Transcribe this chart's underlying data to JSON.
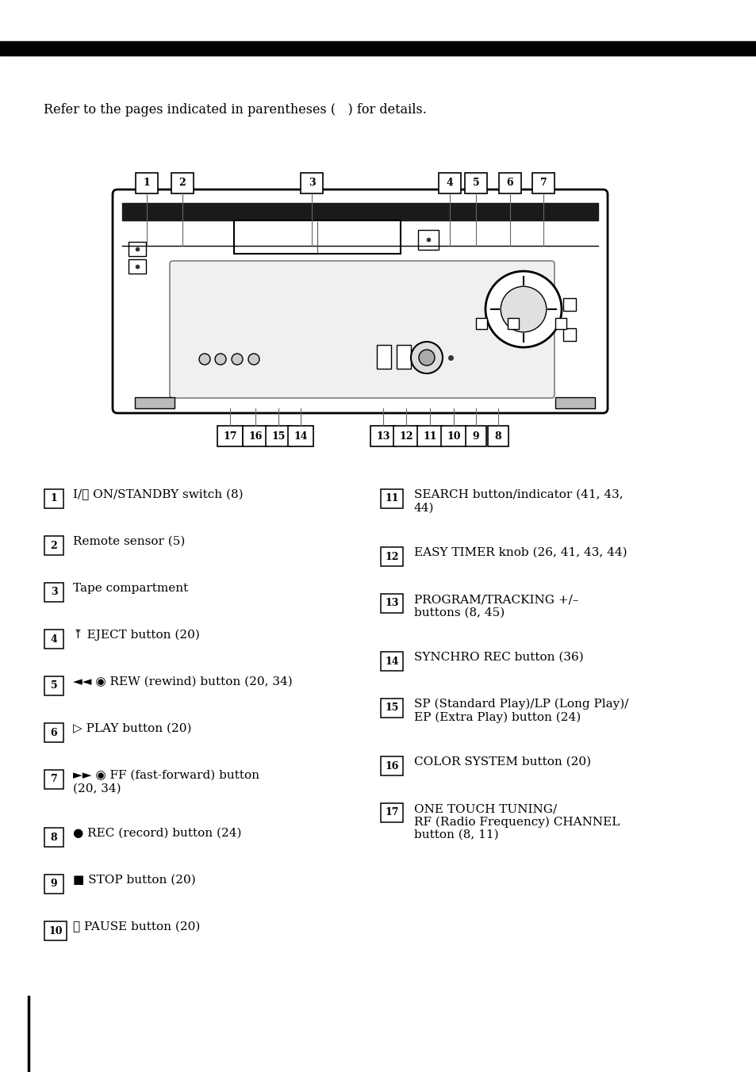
{
  "bg_color": "#ffffff",
  "top_bar_color": "#000000",
  "intro_text": "Refer to the pages indicated in parentheses (   ) for details.",
  "left_items": [
    {
      "num": "1",
      "text": "I/⏻ ON/STANDBY switch (8)",
      "lines": 1
    },
    {
      "num": "2",
      "text": "Remote sensor (5)",
      "lines": 1
    },
    {
      "num": "3",
      "text": "Tape compartment",
      "lines": 1
    },
    {
      "num": "4",
      "text": "⤒ EJECT button (20)",
      "lines": 1
    },
    {
      "num": "5",
      "text": "◄◄ ◉ REW (rewind) button (20, 34)",
      "lines": 1
    },
    {
      "num": "6",
      "text": "▷ PLAY button (20)",
      "lines": 1
    },
    {
      "num": "7",
      "text": "►► ◉ FF (fast-forward) button\n(20, 34)",
      "lines": 2
    },
    {
      "num": "8",
      "text": "● REC (record) button (24)",
      "lines": 1
    },
    {
      "num": "9",
      "text": "■ STOP button (20)",
      "lines": 1
    },
    {
      "num": "10",
      "text": "⏸ PAUSE button (20)",
      "lines": 1
    }
  ],
  "right_items": [
    {
      "num": "11",
      "text": "SEARCH button/indicator (41, 43,\n44)",
      "lines": 2
    },
    {
      "num": "12",
      "text": "EASY TIMER knob (26, 41, 43, 44)",
      "lines": 1
    },
    {
      "num": "13",
      "text": "PROGRAM/TRACKING +/–\nbuttons (8, 45)",
      "lines": 2
    },
    {
      "num": "14",
      "text": "SYNCHRO REC button (36)",
      "lines": 1
    },
    {
      "num": "15",
      "text": "SP (Standard Play)/LP (Long Play)/\nEP (Extra Play) button (24)",
      "lines": 2
    },
    {
      "num": "16",
      "text": "COLOR SYSTEM button (20)",
      "lines": 1
    },
    {
      "num": "17",
      "text": "ONE TOUCH TUNING/\nRF (Radio Frequency) CHANNEL\nbutton (8, 11)",
      "lines": 3
    }
  ]
}
